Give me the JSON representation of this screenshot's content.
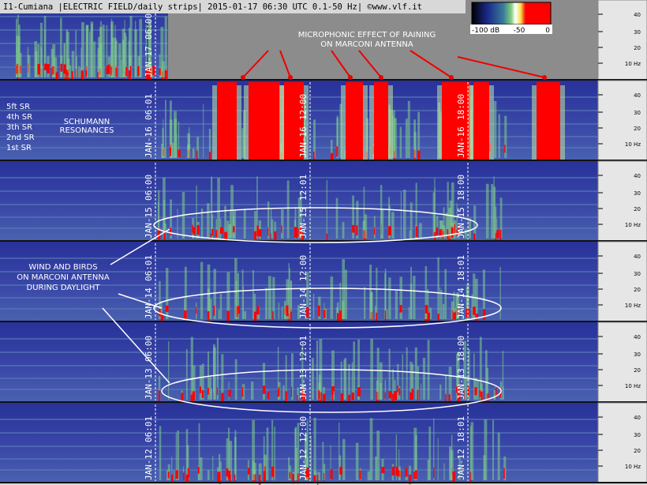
{
  "header": {
    "title": "I1-Cumiana |ELECTRIC FIELD/daily strips| 2015-01-17 06:30 UTC 0.1-50 Hz| ©www.vlf.it"
  },
  "colorbar": {
    "labels": [
      "-100 dB",
      "-50",
      "0"
    ]
  },
  "annotations": {
    "rain": [
      "MICROPHONIC EFFECT OF RAINING",
      "ON MARCONI ANTENNA"
    ],
    "schumann": [
      "SCHUMANN",
      "RESONANCES"
    ],
    "sr_labels": [
      "5ft SR",
      "4th SR",
      "3th SR",
      "2nd SR",
      "1st SR"
    ],
    "wind": [
      "WIND AND BIRDS",
      "ON MARCONI ANTENNA",
      "DURING DAYLIGHT"
    ]
  },
  "strips": [
    {
      "date": "JAN-17",
      "times": [
        "06:00"
      ]
    },
    {
      "date": "JAN-16",
      "times": [
        "06:01",
        "12:00",
        "18:00"
      ]
    },
    {
      "date": "JAN-15",
      "times": [
        "06:00",
        "12:01",
        "18:00"
      ]
    },
    {
      "date": "JAN-14",
      "times": [
        "06:01",
        "12:00",
        "18:01"
      ]
    },
    {
      "date": "JAN-13",
      "times": [
        "06:00",
        "12:01",
        "18:00"
      ]
    },
    {
      "date": "JAN-12",
      "times": [
        "06:01",
        "12:00",
        "18:01"
      ]
    }
  ],
  "frequency_ticks": [
    "40",
    "30",
    "20",
    "10 Hz"
  ]
}
